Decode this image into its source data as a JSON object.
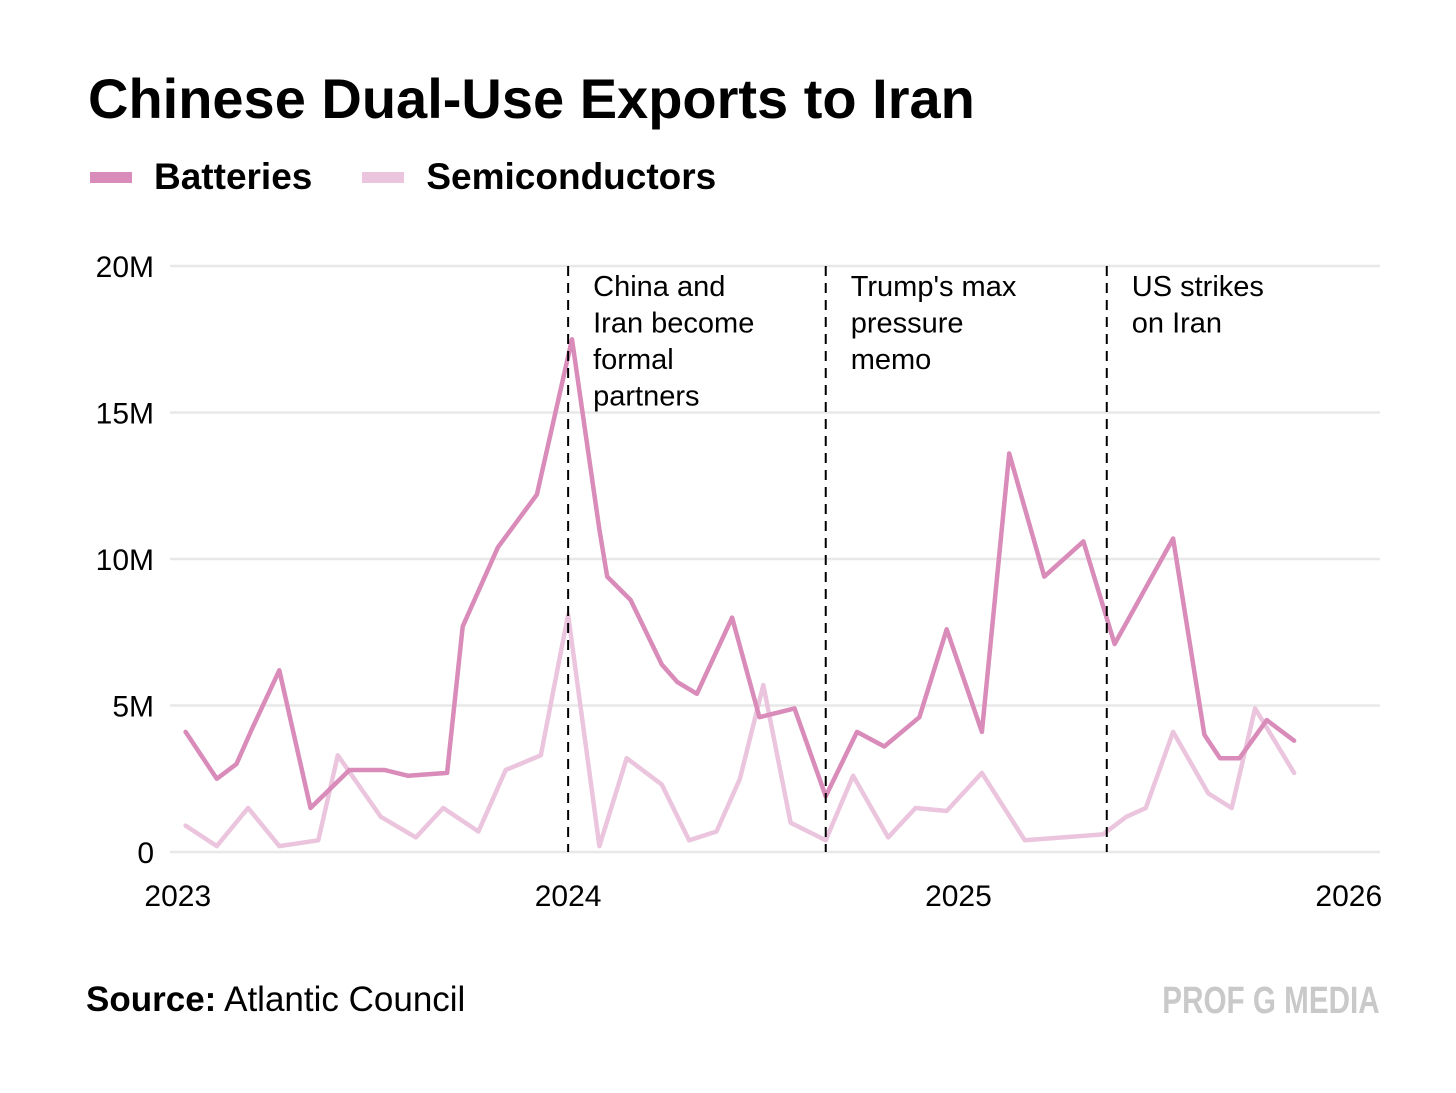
{
  "header": {
    "title": "Chinese Dual-Use Exports to Iran"
  },
  "legend": [
    {
      "label": "Batteries",
      "color": "#d98bb9"
    },
    {
      "label": "Semiconductors",
      "color": "#ebc5dd"
    }
  ],
  "footer": {
    "source_label": "Source:",
    "source_value": "Atlantic Council",
    "brand": "PROF G MEDIA"
  },
  "chart_data": {
    "type": "line",
    "title": "Chinese Dual-Use Exports to Iran",
    "xlabel": "",
    "ylabel": "",
    "ylim": [
      0,
      20000000
    ],
    "yticks": [
      {
        "value": 0,
        "label": "0"
      },
      {
        "value": 5000000,
        "label": "5M"
      },
      {
        "value": 10000000,
        "label": "10M"
      },
      {
        "value": 15000000,
        "label": "15M"
      },
      {
        "value": 20000000,
        "label": "20M"
      }
    ],
    "xlim": [
      2022.98,
      2026.08
    ],
    "xticks": [
      {
        "value": 2023,
        "label": "2023"
      },
      {
        "value": 2024,
        "label": "2024"
      },
      {
        "value": 2025,
        "label": "2025"
      },
      {
        "value": 2026,
        "label": "2026"
      }
    ],
    "grid": true,
    "legend_position": "top-left",
    "annotations": [
      {
        "x": 2024.0,
        "lines": [
          "China and",
          "Iran become",
          "formal",
          "partners"
        ]
      },
      {
        "x": 2024.66,
        "lines": [
          "Trump's max",
          "pressure",
          "memo"
        ]
      },
      {
        "x": 2025.38,
        "lines": [
          "US strikes",
          "on Iran"
        ]
      }
    ],
    "series": [
      {
        "name": "Batteries",
        "color": "#d98bb9",
        "points": [
          [
            2023.02,
            4100000
          ],
          [
            2023.1,
            2500000
          ],
          [
            2023.15,
            3000000
          ],
          [
            2023.19,
            4200000
          ],
          [
            2023.26,
            6200000
          ],
          [
            2023.34,
            1500000
          ],
          [
            2023.44,
            2800000
          ],
          [
            2023.53,
            2800000
          ],
          [
            2023.59,
            2600000
          ],
          [
            2023.69,
            2700000
          ],
          [
            2023.73,
            7700000
          ],
          [
            2023.82,
            10400000
          ],
          [
            2023.92,
            12200000
          ],
          [
            2024.01,
            17500000
          ],
          [
            2024.08,
            11000000
          ],
          [
            2024.1,
            9400000
          ],
          [
            2024.16,
            8600000
          ],
          [
            2024.24,
            6400000
          ],
          [
            2024.28,
            5800000
          ],
          [
            2024.33,
            5400000
          ],
          [
            2024.42,
            8000000
          ],
          [
            2024.49,
            4600000
          ],
          [
            2024.58,
            4900000
          ],
          [
            2024.66,
            1900000
          ],
          [
            2024.74,
            4100000
          ],
          [
            2024.81,
            3600000
          ],
          [
            2024.9,
            4600000
          ],
          [
            2024.97,
            7600000
          ],
          [
            2025.06,
            4100000
          ],
          [
            2025.13,
            13600000
          ],
          [
            2025.22,
            9400000
          ],
          [
            2025.32,
            10600000
          ],
          [
            2025.4,
            7100000
          ],
          [
            2025.55,
            10700000
          ],
          [
            2025.63,
            4000000
          ],
          [
            2025.67,
            3200000
          ],
          [
            2025.72,
            3200000
          ],
          [
            2025.79,
            4500000
          ],
          [
            2025.86,
            3800000
          ]
        ]
      },
      {
        "name": "Semiconductors",
        "color": "#ebc5dd",
        "points": [
          [
            2023.02,
            900000
          ],
          [
            2023.1,
            200000
          ],
          [
            2023.18,
            1500000
          ],
          [
            2023.26,
            200000
          ],
          [
            2023.36,
            400000
          ],
          [
            2023.41,
            3300000
          ],
          [
            2023.52,
            1200000
          ],
          [
            2023.61,
            500000
          ],
          [
            2023.68,
            1500000
          ],
          [
            2023.77,
            700000
          ],
          [
            2023.84,
            2800000
          ],
          [
            2023.93,
            3300000
          ],
          [
            2024.0,
            8100000
          ],
          [
            2024.08,
            200000
          ],
          [
            2024.15,
            3200000
          ],
          [
            2024.24,
            2300000
          ],
          [
            2024.31,
            400000
          ],
          [
            2024.38,
            700000
          ],
          [
            2024.44,
            2500000
          ],
          [
            2024.5,
            5700000
          ],
          [
            2024.57,
            1000000
          ],
          [
            2024.66,
            400000
          ],
          [
            2024.73,
            2600000
          ],
          [
            2024.82,
            500000
          ],
          [
            2024.89,
            1500000
          ],
          [
            2024.97,
            1400000
          ],
          [
            2025.06,
            2700000
          ],
          [
            2025.17,
            400000
          ],
          [
            2025.37,
            600000
          ],
          [
            2025.43,
            1200000
          ],
          [
            2025.48,
            1500000
          ],
          [
            2025.55,
            4100000
          ],
          [
            2025.64,
            2000000
          ],
          [
            2025.7,
            1500000
          ],
          [
            2025.76,
            4900000
          ],
          [
            2025.86,
            2700000
          ]
        ]
      }
    ]
  }
}
